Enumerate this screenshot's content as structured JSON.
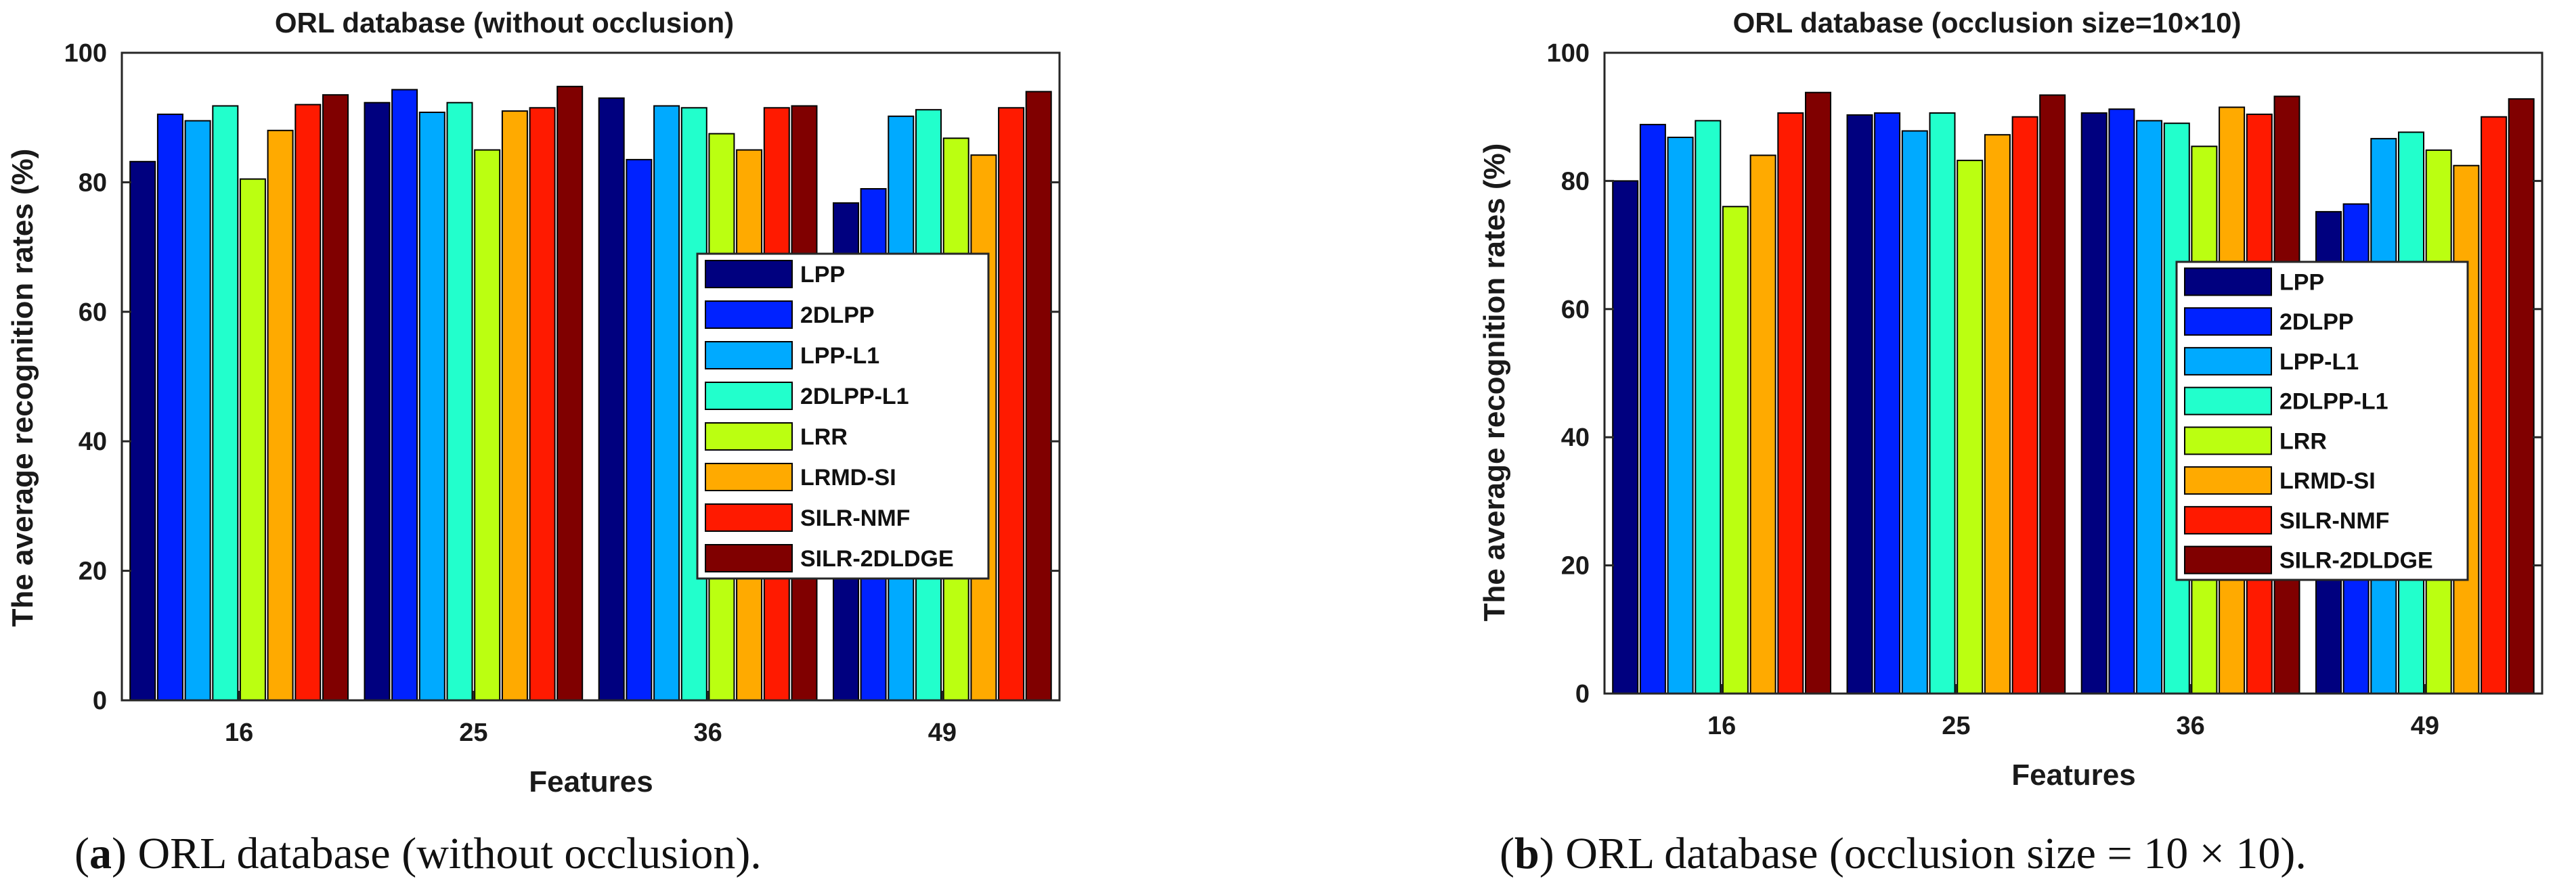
{
  "chart_data": [
    {
      "type": "bar",
      "title": "ORL database (without occlusion)",
      "xlabel": "Features",
      "ylabel": "The average recognition rates (%)",
      "ylim": [
        0,
        100
      ],
      "yticks": [
        0,
        20,
        40,
        60,
        80,
        100
      ],
      "categories": [
        "16",
        "25",
        "36",
        "49"
      ],
      "legend_position": "right-lower",
      "series": [
        {
          "name": "LPP",
          "color": "#00007f",
          "values": [
            83.2,
            92.3,
            93.0,
            76.8
          ]
        },
        {
          "name": "2DLPP",
          "color": "#0022ff",
          "values": [
            90.5,
            94.3,
            83.5,
            79.0
          ]
        },
        {
          "name": "LPP-L1",
          "color": "#00aaff",
          "values": [
            89.5,
            90.8,
            91.8,
            90.2
          ]
        },
        {
          "name": "2DLPP-L1",
          "color": "#22ffcc",
          "values": [
            91.8,
            92.3,
            91.5,
            91.2
          ]
        },
        {
          "name": "LRR",
          "color": "#bbff11",
          "values": [
            80.5,
            85.0,
            87.5,
            86.8
          ]
        },
        {
          "name": "LRMD-SI",
          "color": "#ffaa00",
          "values": [
            88.0,
            91.0,
            85.0,
            84.2
          ]
        },
        {
          "name": "SILR-NMF",
          "color": "#ff1a00",
          "values": [
            92.0,
            91.5,
            91.5,
            91.5
          ]
        },
        {
          "name": "SILR-2DLDGE",
          "color": "#800000",
          "values": [
            93.5,
            94.8,
            91.8,
            94.0
          ]
        }
      ],
      "caption_label": "a",
      "caption_text": "ORL database (without occlusion)."
    },
    {
      "type": "bar",
      "title": "ORL database (occlusion size=10×10)",
      "xlabel": "Features",
      "ylabel": "The average recognition rates (%)",
      "ylim": [
        0,
        100
      ],
      "yticks": [
        0,
        20,
        40,
        60,
        80,
        100
      ],
      "categories": [
        "16",
        "25",
        "36",
        "49"
      ],
      "legend_position": "right-lower",
      "series": [
        {
          "name": "LPP",
          "color": "#00007f",
          "values": [
            80.0,
            90.3,
            90.6,
            75.2
          ]
        },
        {
          "name": "2DLPP",
          "color": "#0022ff",
          "values": [
            88.8,
            90.6,
            91.2,
            76.4
          ]
        },
        {
          "name": "LPP-L1",
          "color": "#00aaff",
          "values": [
            86.8,
            87.8,
            89.4,
            86.6
          ]
        },
        {
          "name": "2DLPP-L1",
          "color": "#22ffcc",
          "values": [
            89.4,
            90.6,
            89.0,
            87.6
          ]
        },
        {
          "name": "LRR",
          "color": "#bbff11",
          "values": [
            76.0,
            83.2,
            85.4,
            84.8
          ]
        },
        {
          "name": "LRMD-SI",
          "color": "#ffaa00",
          "values": [
            84.0,
            87.2,
            91.5,
            82.4
          ]
        },
        {
          "name": "SILR-NMF",
          "color": "#ff1a00",
          "values": [
            90.6,
            90.0,
            90.4,
            90.0
          ]
        },
        {
          "name": "SILR-2DLDGE",
          "color": "#800000",
          "values": [
            93.8,
            93.4,
            93.2,
            92.8
          ]
        }
      ],
      "caption_label": "b",
      "caption_text": "ORL database (occlusion size = 10 × 10)."
    }
  ]
}
